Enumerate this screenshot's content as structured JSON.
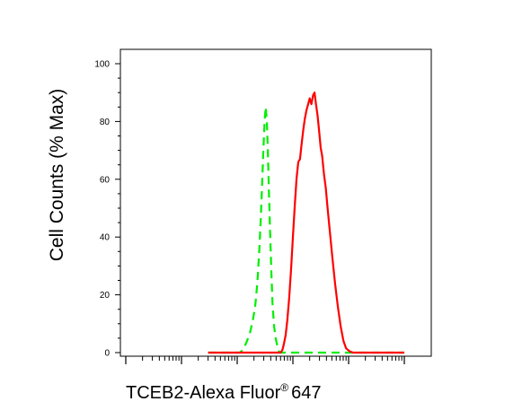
{
  "chart_data": {
    "type": "line",
    "title": "",
    "xlabel": {
      "prefix": "TCEB2-Alexa Fluor",
      "superscript": "®",
      "suffix": "647"
    },
    "ylabel": "Cell Counts (% Max)",
    "x_scale": "log",
    "xlim": [
      1,
      100000
    ],
    "ylim": [
      0,
      100
    ],
    "y_ticks": [
      "0",
      "20",
      "40",
      "60",
      "80",
      "100"
    ],
    "x_tick_labels": [],
    "grid": false,
    "legend": "none",
    "series": [
      {
        "color": "#00ee00",
        "dash": "dashed",
        "points": [
          [
            30,
            0
          ],
          [
            110,
            0
          ],
          [
            120,
            0.5
          ],
          [
            135,
            2
          ],
          [
            150,
            4
          ],
          [
            170,
            7
          ],
          [
            190,
            11
          ],
          [
            210,
            16
          ],
          [
            230,
            24
          ],
          [
            250,
            36
          ],
          [
            265,
            46
          ],
          [
            280,
            58
          ],
          [
            295,
            70
          ],
          [
            310,
            80
          ],
          [
            325,
            85
          ],
          [
            340,
            80
          ],
          [
            355,
            70
          ],
          [
            370,
            57
          ],
          [
            390,
            42
          ],
          [
            410,
            28
          ],
          [
            430,
            17
          ],
          [
            460,
            9
          ],
          [
            490,
            5
          ],
          [
            530,
            2
          ],
          [
            560,
            0.5
          ],
          [
            600,
            0
          ],
          [
            100000,
            0
          ]
        ]
      },
      {
        "color": "#ff0000",
        "dash": "solid",
        "points": [
          [
            30,
            0
          ],
          [
            600,
            0
          ],
          [
            620,
            0.3
          ],
          [
            650,
            1
          ],
          [
            690,
            3
          ],
          [
            740,
            6
          ],
          [
            790,
            11
          ],
          [
            860,
            19
          ],
          [
            930,
            29
          ],
          [
            1000,
            40
          ],
          [
            1080,
            51
          ],
          [
            1160,
            60
          ],
          [
            1250,
            66
          ],
          [
            1340,
            67
          ],
          [
            1430,
            72
          ],
          [
            1530,
            77
          ],
          [
            1640,
            81
          ],
          [
            1760,
            84
          ],
          [
            1880,
            86
          ],
          [
            2000,
            88
          ],
          [
            2150,
            86
          ],
          [
            2300,
            89
          ],
          [
            2450,
            90
          ],
          [
            2600,
            86
          ],
          [
            2780,
            82
          ],
          [
            2950,
            77
          ],
          [
            3150,
            71
          ],
          [
            3350,
            68
          ],
          [
            3600,
            62
          ],
          [
            3900,
            57
          ],
          [
            4200,
            50
          ],
          [
            4600,
            42
          ],
          [
            5100,
            33
          ],
          [
            5700,
            24
          ],
          [
            6400,
            16
          ],
          [
            7200,
            9
          ],
          [
            8100,
            4
          ],
          [
            9000,
            1.5
          ],
          [
            10500,
            0.4
          ],
          [
            12000,
            0
          ],
          [
            100000,
            0
          ]
        ]
      }
    ]
  }
}
